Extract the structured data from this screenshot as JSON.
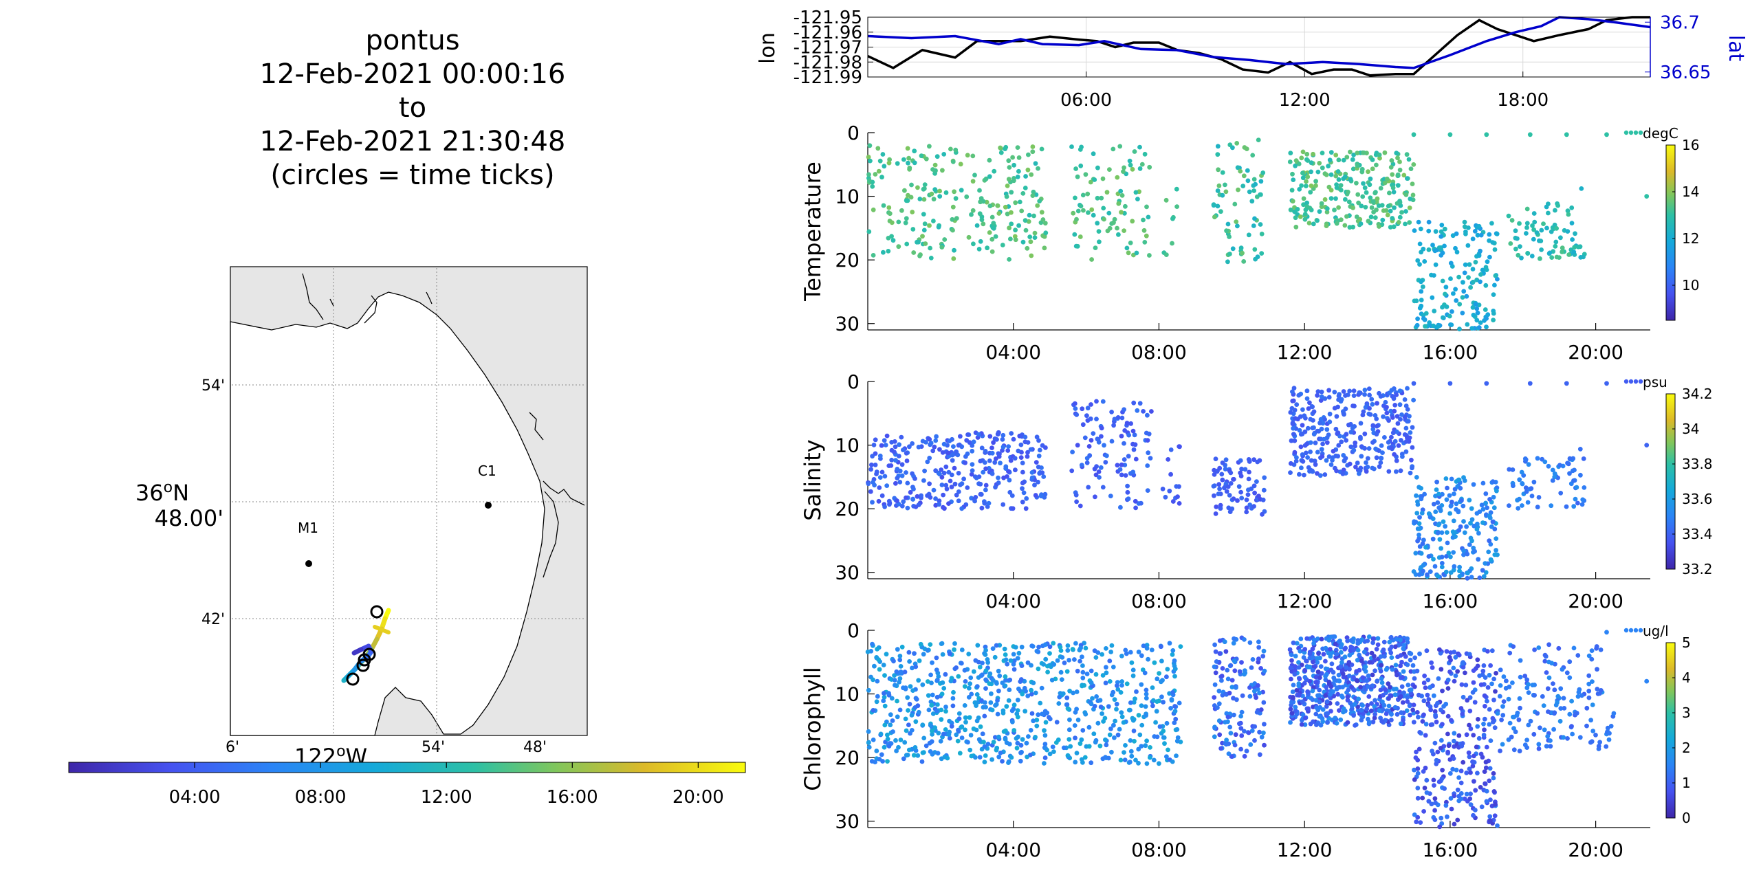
{
  "title": {
    "lines": [
      "pontus",
      "12-Feb-2021 00:00:16",
      "to",
      "12-Feb-2021 21:30:48",
      "(circles = time ticks)"
    ]
  },
  "map": {
    "lat_ticks": [
      "54'",
      "42'"
    ],
    "lat_center_label_deg": "36",
    "lat_center_label_unit": "o",
    "lat_center_label_hemi": "N",
    "lat_center_label_min": "48.00'",
    "lon_ticks": [
      "6'",
      "54'",
      "48'"
    ],
    "lon_center_label_deg": "122",
    "lon_center_label_unit": "o",
    "lon_center_label_hemi": "W",
    "stations": [
      {
        "name": "M1",
        "lon": -122.03,
        "lat": 36.747
      },
      {
        "name": "C1",
        "lon": -121.847,
        "lat": 36.797
      }
    ],
    "colors": {
      "land": "#e6e6e6",
      "water": "#ffffff",
      "coast": "#000000",
      "grid": "#888888"
    }
  },
  "time_colorbar": {
    "ticks": [
      "04:00",
      "08:00",
      "12:00",
      "16:00",
      "20:00"
    ],
    "range_hours": [
      0,
      21.5
    ]
  },
  "chart_data": [
    {
      "type": "line",
      "name": "lon-lat",
      "x_ticks": [
        "06:00",
        "12:00",
        "18:00"
      ],
      "xlim_hours": [
        0,
        21.5
      ],
      "ylabel_left": "lon",
      "ylabel_right": "lat",
      "left_ticks": [
        "-121.95",
        "-121.96",
        "-121.97",
        "-121.98",
        "-121.99"
      ],
      "right_ticks": [
        "36.7",
        "36.65"
      ],
      "left_ylim": [
        -121.99,
        -121.95
      ],
      "right_ylim": [
        36.645,
        36.705
      ],
      "series": [
        {
          "axis": "left",
          "color": "#000000",
          "x": [
            0,
            0.7,
            1.5,
            2.4,
            3.0,
            3.5,
            4.2,
            5.0,
            5.8,
            6.3,
            6.8,
            7.3,
            8.0,
            8.5,
            9.1,
            9.7,
            10.3,
            11.0,
            11.6,
            12.2,
            12.8,
            13.3,
            13.8,
            14.5,
            15.0,
            15.6,
            16.2,
            16.8,
            17.3,
            17.8,
            18.3,
            19.0,
            19.8,
            20.3,
            21.0,
            21.5
          ],
          "y": [
            -121.976,
            -121.984,
            -121.972,
            -121.977,
            -121.966,
            -121.966,
            -121.966,
            -121.963,
            -121.965,
            -121.966,
            -121.97,
            -121.967,
            -121.967,
            -121.972,
            -121.974,
            -121.978,
            -121.985,
            -121.987,
            -121.98,
            -121.988,
            -121.985,
            -121.985,
            -121.989,
            -121.988,
            -121.988,
            -121.975,
            -121.962,
            -121.952,
            -121.958,
            -121.962,
            -121.966,
            -121.962,
            -121.958,
            -121.952,
            -121.95,
            -121.95
          ]
        },
        {
          "axis": "right",
          "color": "#0000cc",
          "x": [
            0,
            1.2,
            2.4,
            3.6,
            4.2,
            4.8,
            5.8,
            6.5,
            7.5,
            8.5,
            9.5,
            10.5,
            11.5,
            12.5,
            13.5,
            14.5,
            15.0,
            16.0,
            17.0,
            17.8,
            18.5,
            19.0,
            19.8,
            20.5,
            21.5
          ],
          "y": [
            36.686,
            36.684,
            36.686,
            36.678,
            36.683,
            36.678,
            36.677,
            36.681,
            36.673,
            36.672,
            36.665,
            36.662,
            36.658,
            36.66,
            36.658,
            36.655,
            36.654,
            36.667,
            36.681,
            36.69,
            36.696,
            36.705,
            36.703,
            36.7,
            36.695
          ]
        }
      ]
    },
    {
      "type": "scatter",
      "name": "temperature",
      "ylabel": "Temperature",
      "units": "degC",
      "y_ticks": [
        "0",
        "10",
        "20",
        "30"
      ],
      "ylim": [
        0,
        31
      ],
      "x_ticks": [
        "04:00",
        "08:00",
        "12:00",
        "16:00",
        "20:00"
      ],
      "colorbar_ticks": [
        "16",
        "14",
        "12",
        "10"
      ],
      "colorbar_range": [
        8.5,
        16
      ],
      "colormap": "parula"
    },
    {
      "type": "scatter",
      "name": "salinity",
      "ylabel": "Salinity",
      "units": "psu",
      "y_ticks": [
        "0",
        "10",
        "20",
        "30"
      ],
      "ylim": [
        0,
        31
      ],
      "x_ticks": [
        "04:00",
        "08:00",
        "12:00",
        "16:00",
        "20:00"
      ],
      "colorbar_ticks": [
        "34.2",
        "34",
        "33.8",
        "33.6",
        "33.4",
        "33.2"
      ],
      "colorbar_range": [
        33.2,
        34.2
      ],
      "colormap": "parula"
    },
    {
      "type": "scatter",
      "name": "chlorophyll",
      "ylabel": "Chlorophyll",
      "units": "ug/l",
      "y_ticks": [
        "0",
        "10",
        "20",
        "30"
      ],
      "ylim": [
        0,
        31
      ],
      "x_ticks": [
        "04:00",
        "08:00",
        "12:00",
        "16:00",
        "20:00"
      ],
      "colorbar_ticks": [
        "5",
        "4",
        "3",
        "2",
        "1",
        "0"
      ],
      "colorbar_range": [
        0,
        5
      ],
      "colormap": "parula"
    }
  ]
}
